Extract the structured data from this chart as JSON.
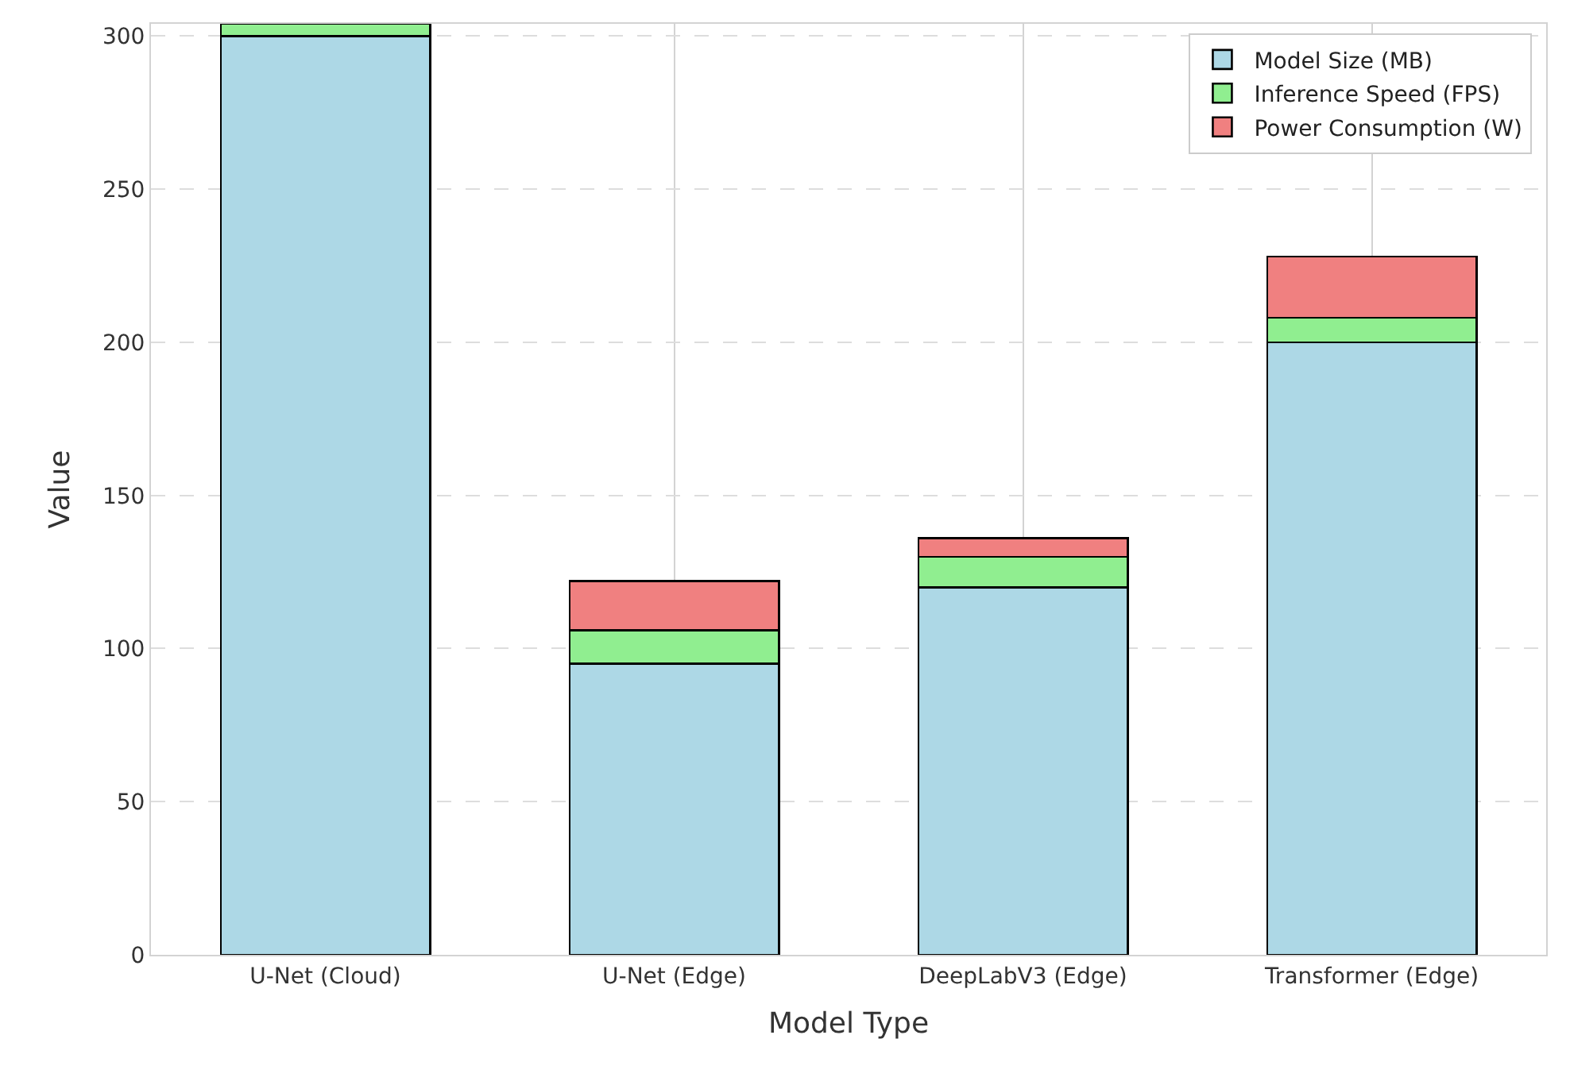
{
  "chart_data": {
    "type": "bar",
    "stacked": true,
    "xlabel": "Model Type",
    "ylabel": "Value",
    "categories": [
      "U-Net (Cloud)",
      "U-Net (Edge)",
      "DeepLabV3 (Edge)",
      "Transformer (Edge)"
    ],
    "series": [
      {
        "name": "Model Size (MB)",
        "color": "#add8e6",
        "values": [
          300,
          95,
          120,
          200
        ]
      },
      {
        "name": "Inference Speed (FPS)",
        "color": "#90ee90",
        "values": [
          4,
          11,
          10,
          8
        ]
      },
      {
        "name": "Power Consumption (W)",
        "color": "#f08080",
        "values": [
          null,
          16,
          6,
          20
        ]
      }
    ],
    "ylim": [
      0,
      304
    ],
    "yticks": [
      0,
      50,
      100,
      150,
      200,
      250,
      300
    ],
    "grid": true,
    "legend": "top right"
  }
}
